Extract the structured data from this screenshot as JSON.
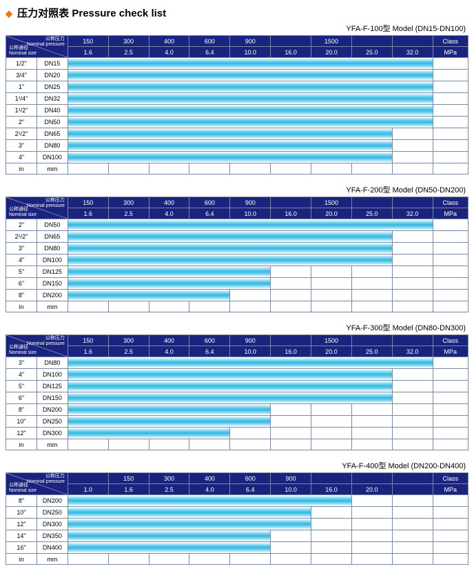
{
  "title_cn": "压力对照表",
  "title_en": "Pressure check list",
  "colors": {
    "header_bg": "#1a237e",
    "header_fg": "#ffffff",
    "border": "#7a8aa0",
    "bar_gradient": [
      "#e6f7ff",
      "#7bd4f0",
      "#33b8e0",
      "#7bd4f0",
      "#e6f7ff"
    ],
    "diamond": "#e67817"
  },
  "header_labels": {
    "nominal_pressure_cn": "公称压力",
    "nominal_pressure_en": "Nominal pressure",
    "nominal_size_cn": "公称通径",
    "nominal_size_en": "Nominal size",
    "class": "Class",
    "mpa": "MPa",
    "in": "in",
    "mm": "mm"
  },
  "tables": [
    {
      "model": "YFA-F-100型  Model (DN15-DN100)",
      "class_row": [
        "150",
        "300",
        "400",
        "600",
        "900",
        "",
        "1500",
        "",
        ""
      ],
      "mpa_row": [
        "1.6",
        "2.5",
        "4.0",
        "6.4",
        "10.0",
        "16.0",
        "20.0",
        "25.0",
        "32.0"
      ],
      "col_count": 9,
      "rows": [
        {
          "in": "1/2\"",
          "mm": "DN15",
          "bar_span": 9
        },
        {
          "in": "3/4\"",
          "mm": "DN20",
          "bar_span": 9
        },
        {
          "in": "1\"",
          "mm": "DN25",
          "bar_span": 9
        },
        {
          "in": "1¹/4\"",
          "mm": "DN32",
          "bar_span": 9
        },
        {
          "in": "1¹/2\"",
          "mm": "DN40",
          "bar_span": 9
        },
        {
          "in": "2\"",
          "mm": "DN50",
          "bar_span": 9
        },
        {
          "in": "2¹/2\"",
          "mm": "DN65",
          "bar_span": 8
        },
        {
          "in": "3\"",
          "mm": "DN80",
          "bar_span": 8
        },
        {
          "in": "4\"",
          "mm": "DN100",
          "bar_span": 8
        }
      ]
    },
    {
      "model": "YFA-F-200型  Model (DN50-DN200)",
      "class_row": [
        "150",
        "300",
        "400",
        "600",
        "900",
        "",
        "1500",
        "",
        ""
      ],
      "mpa_row": [
        "1.6",
        "2.5",
        "4.0",
        "6.4",
        "10.0",
        "16.0",
        "20.0",
        "25.0",
        "32.0"
      ],
      "col_count": 9,
      "rows": [
        {
          "in": "2\"",
          "mm": "DN50",
          "bar_span": 9
        },
        {
          "in": "2¹/2\"",
          "mm": "DN65",
          "bar_span": 8
        },
        {
          "in": "3\"",
          "mm": "DN80",
          "bar_span": 8
        },
        {
          "in": "4\"",
          "mm": "DN100",
          "bar_span": 8
        },
        {
          "in": "5\"",
          "mm": "DN125",
          "bar_span": 5
        },
        {
          "in": "6\"",
          "mm": "DN150",
          "bar_span": 5
        },
        {
          "in": "8\"",
          "mm": "DN200",
          "bar_span": 4
        }
      ]
    },
    {
      "model": "YFA-F-300型  Model (DN80-DN300)",
      "class_row": [
        "150",
        "300",
        "400",
        "600",
        "900",
        "",
        "1500",
        "",
        ""
      ],
      "mpa_row": [
        "1.6",
        "2.5",
        "4.0",
        "6.4",
        "10.0",
        "16.0",
        "20.0",
        "25.0",
        "32.0"
      ],
      "col_count": 9,
      "rows": [
        {
          "in": "3\"",
          "mm": "DN80",
          "bar_span": 9
        },
        {
          "in": "4\"",
          "mm": "DN100",
          "bar_span": 8
        },
        {
          "in": "5\"",
          "mm": "DN125",
          "bar_span": 8
        },
        {
          "in": "6\"",
          "mm": "DN150",
          "bar_span": 8
        },
        {
          "in": "8\"",
          "mm": "DN200",
          "bar_span": 5
        },
        {
          "in": "10\"",
          "mm": "DN250",
          "bar_span": 5
        },
        {
          "in": "12\"",
          "mm": "DN300",
          "bar_span": 4
        }
      ]
    },
    {
      "model": "YFA-F-400型  Model (DN200-DN400)",
      "class_row": [
        "",
        "150",
        "300",
        "400",
        "600",
        "900",
        "",
        "",
        ""
      ],
      "mpa_row": [
        "1.0",
        "1.6",
        "2.5",
        "4.0",
        "6.4",
        "10.0",
        "16.0",
        "20.0",
        ""
      ],
      "col_count": 9,
      "rows": [
        {
          "in": "8\"",
          "mm": "DN200",
          "bar_span": 7
        },
        {
          "in": "10\"",
          "mm": "DN250",
          "bar_span": 6
        },
        {
          "in": "12\"",
          "mm": "DN300",
          "bar_span": 6
        },
        {
          "in": "14\"",
          "mm": "DN350",
          "bar_span": 5
        },
        {
          "in": "16\"",
          "mm": "DN400",
          "bar_span": 5
        }
      ]
    }
  ]
}
